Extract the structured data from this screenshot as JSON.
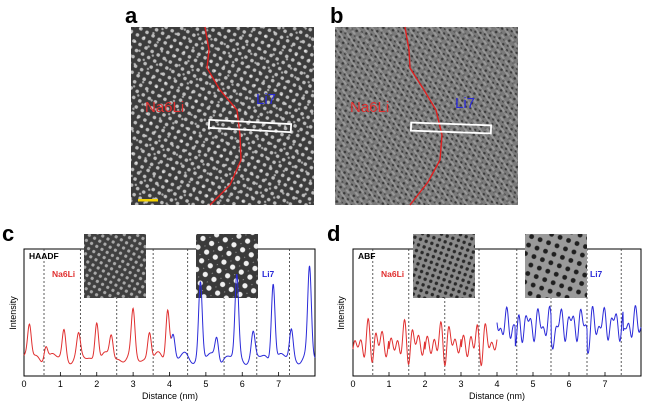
{
  "figure": {
    "panels": {
      "a": {
        "label": "a",
        "left_label": "Na6Li",
        "right_label": "Li7"
      },
      "b": {
        "label": "b",
        "left_label": "Na6Li",
        "right_label": "Li7"
      },
      "c": {
        "label": "c",
        "tag": "HAADF",
        "left_label": "Na6Li",
        "right_label": "Li7"
      },
      "d": {
        "label": "d",
        "tag": "ABF",
        "left_label": "Na6Li",
        "right_label": "Li7"
      }
    },
    "colors": {
      "na6li": "#e03030",
      "li7": "#2a2ad8",
      "scale_bar": "#f2d100"
    }
  },
  "chart_data": [
    {
      "type": "line",
      "panel": "c",
      "tag": "HAADF",
      "xlabel": "Distance (nm)",
      "ylabel": "Intensity",
      "xlim": [
        0,
        8
      ],
      "xticks": [
        0,
        1,
        2,
        3,
        4,
        5,
        6,
        7
      ],
      "boundaries": [
        0.55,
        1.55,
        2.55,
        3.55,
        4.5,
        5.5,
        6.4,
        7.3
      ],
      "series": [
        {
          "name": "Na6Li",
          "color": "#e03030",
          "peaks": [
            [
              0.15,
              0.4
            ],
            [
              0.6,
              0.2
            ],
            [
              1.1,
              0.35
            ],
            [
              1.5,
              0.25
            ],
            [
              2.0,
              0.5
            ],
            [
              2.4,
              0.3
            ],
            [
              3.0,
              0.55
            ],
            [
              3.45,
              0.35
            ],
            [
              3.95,
              0.65
            ]
          ],
          "x_range": [
            0,
            4.05
          ]
        },
        {
          "name": "Li7",
          "color": "#2a2ad8",
          "peaks": [
            [
              4.1,
              0.3
            ],
            [
              4.85,
              0.95
            ],
            [
              5.3,
              0.3
            ],
            [
              5.85,
              1.0
            ],
            [
              6.3,
              0.3
            ],
            [
              6.85,
              1.0
            ],
            [
              7.35,
              0.35
            ],
            [
              7.85,
              1.1
            ]
          ],
          "x_range": [
            4.05,
            8
          ]
        }
      ]
    },
    {
      "type": "line",
      "panel": "d",
      "tag": "ABF",
      "xlabel": "Distance (nm)",
      "ylabel": "Intensity",
      "xlim": [
        0,
        8
      ],
      "xticks": [
        0,
        1,
        2,
        3,
        4,
        5,
        6,
        7
      ],
      "boundaries": [
        0.55,
        1.55,
        2.55,
        3.5,
        4.55,
        5.5,
        6.5,
        7.45
      ],
      "series": [
        {
          "name": "Na6Li",
          "color": "#e03030",
          "x_range": [
            0,
            4.0
          ]
        },
        {
          "name": "Li7",
          "color": "#2a2ad8",
          "x_range": [
            4.0,
            8
          ]
        }
      ]
    }
  ]
}
